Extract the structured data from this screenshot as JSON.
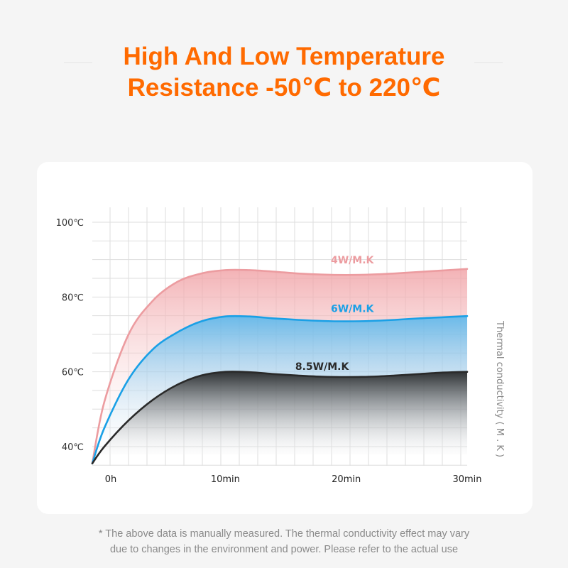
{
  "header": {
    "title_line1": "High And Low Temperature",
    "title_line2": "Resistance -50℃ to 220℃"
  },
  "footnote": {
    "line1": "* The above data is manually measured. The thermal conductivity effect may vary",
    "line2": "due to changes in the environment and power. Please refer to the actual use"
  },
  "colors": {
    "title": "#ff6a00",
    "series_4w": "#f0a0a4",
    "series_6w": "#1aa0e6",
    "series_85w": "#222222",
    "grid": "#dedede"
  },
  "chart_data": {
    "type": "area",
    "title": "",
    "xlabel": "",
    "ylabel": "",
    "y2label": "Thermal conductivity ( M . K )",
    "x_ticks": [
      {
        "x": 0,
        "label": "0h"
      },
      {
        "x": 10,
        "label": "10min"
      },
      {
        "x": 20,
        "label": "20min"
      },
      {
        "x": 30,
        "label": "30min"
      }
    ],
    "y_ticks": [
      {
        "y": 40,
        "label": "40℃"
      },
      {
        "y": 60,
        "label": "60℃"
      },
      {
        "y": 80,
        "label": "80℃"
      },
      {
        "y": 100,
        "label": "100℃"
      }
    ],
    "xlim": [
      -1,
      31
    ],
    "ylim": [
      38,
      102
    ],
    "grid": true,
    "series": [
      {
        "name": "4W/M.K",
        "color": "#ec9ca0",
        "label_at": [
          20.5,
          89
        ],
        "x": [
          -1,
          0,
          2,
          4,
          6,
          8,
          10,
          12,
          14,
          16,
          18,
          20,
          22,
          24,
          26,
          28,
          30
        ],
        "values": [
          35.5,
          52,
          70,
          79,
          84,
          86.3,
          87.2,
          87.2,
          86.8,
          86.3,
          86.0,
          85.9,
          86.0,
          86.3,
          86.7,
          87.1,
          87.5
        ]
      },
      {
        "name": "6W/M.K",
        "color": "#1aa0e6",
        "label_at": [
          20.5,
          76
        ],
        "x": [
          -1,
          0,
          2,
          4,
          6,
          8,
          10,
          12,
          14,
          16,
          18,
          20,
          22,
          24,
          26,
          28,
          30
        ],
        "values": [
          35.5,
          45,
          58,
          66,
          70.5,
          73.5,
          74.8,
          74.8,
          74.3,
          73.9,
          73.6,
          73.5,
          73.6,
          73.9,
          74.3,
          74.6,
          74.9
        ]
      },
      {
        "name": "8.5W/M.K",
        "color": "#2a2a2a",
        "label_at": [
          18,
          60.5
        ],
        "x": [
          -1,
          0,
          2,
          4,
          6,
          8,
          10,
          12,
          14,
          16,
          18,
          20,
          22,
          24,
          26,
          28,
          30
        ],
        "values": [
          35.5,
          40,
          47,
          52.5,
          56.5,
          59,
          60.0,
          59.9,
          59.4,
          59.0,
          58.7,
          58.6,
          58.7,
          59.0,
          59.4,
          59.8,
          60.0
        ]
      }
    ]
  }
}
